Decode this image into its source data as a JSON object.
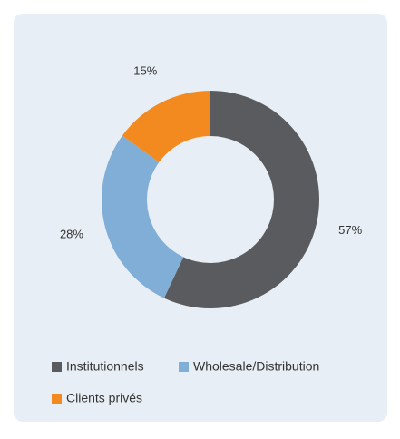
{
  "chart_data": {
    "type": "donut",
    "categories": [
      "Institutionnels",
      "Wholesale/Distribution",
      "Clients privés"
    ],
    "values": [
      57,
      28,
      15
    ],
    "value_labels": [
      "57%",
      "28%",
      "15%"
    ],
    "colors": [
      "#5a5b5e",
      "#80aed7",
      "#f28a1f"
    ],
    "legend": "bottom"
  }
}
